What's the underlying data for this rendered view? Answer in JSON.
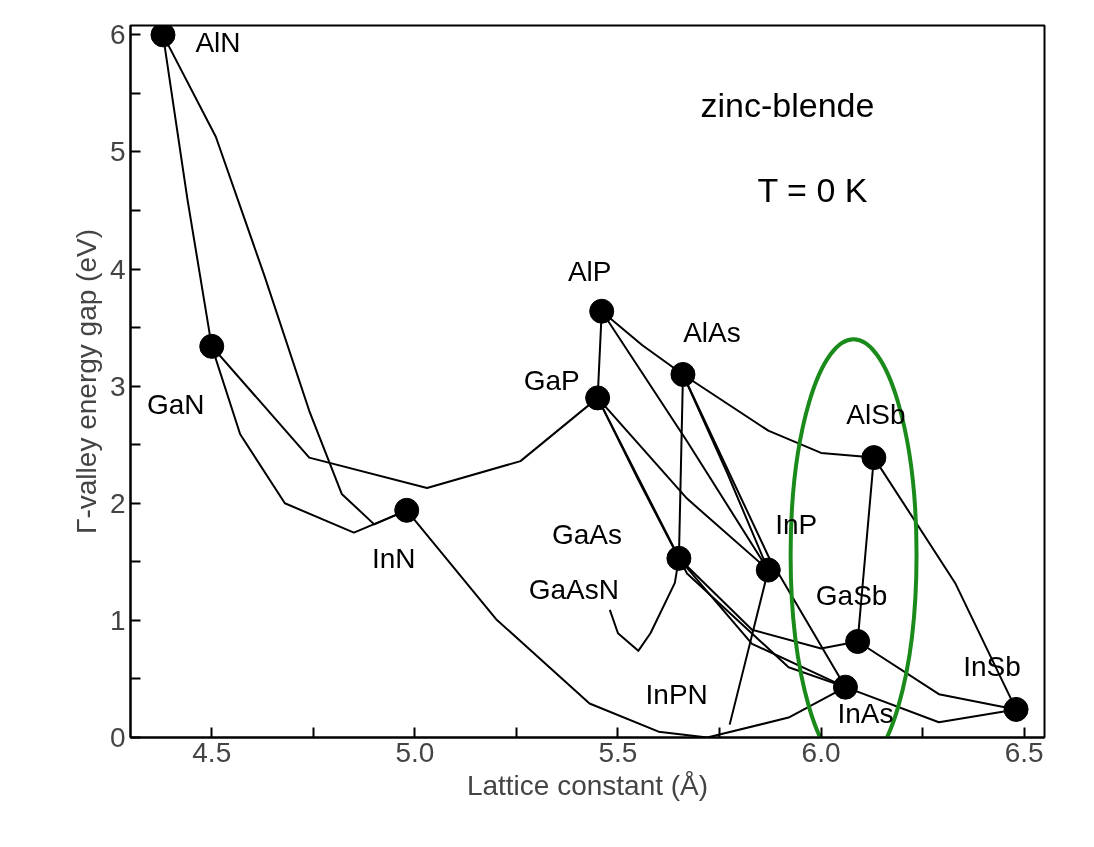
{
  "chart_data": {
    "type": "scatter",
    "xlabel": "Lattice constant (Å)",
    "ylabel": "Γ-valley energy gap (eV)",
    "xlim": [
      4.3,
      6.55
    ],
    "ylim": [
      0,
      6.08
    ],
    "xticks": [
      {
        "value": 4.5,
        "label": "4.5"
      },
      {
        "value": 4.75,
        "label": null
      },
      {
        "value": 5.0,
        "label": "5.0"
      },
      {
        "value": 5.25,
        "label": null
      },
      {
        "value": 5.5,
        "label": "5.5"
      },
      {
        "value": 5.75,
        "label": null
      },
      {
        "value": 6.0,
        "label": "6.0"
      },
      {
        "value": 6.25,
        "label": null
      },
      {
        "value": 6.5,
        "label": "6.5"
      }
    ],
    "yticks": [
      0,
      {
        "value": 0.5,
        "label": null
      },
      1,
      {
        "value": 1.5,
        "label": null
      },
      2,
      {
        "value": 2.5,
        "label": null
      },
      3,
      {
        "value": 3.5,
        "label": null
      },
      4,
      {
        "value": 4.5,
        "label": null
      },
      5,
      {
        "value": 5.5,
        "label": null
      },
      6
    ],
    "grid": false,
    "marker": "none",
    "line_style": "solid",
    "series": [
      {
        "type": "line",
        "color": "#000000",
        "x": [
          4.38,
          4.44,
          4.5
        ],
        "values": [
          6.0,
          4.6,
          3.34
        ]
      },
      {
        "type": "line",
        "color": "#000000",
        "x": [
          4.38,
          4.51,
          4.63,
          4.74,
          4.82,
          4.9,
          4.98
        ],
        "values": [
          6.0,
          5.13,
          3.94,
          2.79,
          2.08,
          1.82,
          1.94
        ]
      },
      {
        "type": "line",
        "color": "#000000",
        "x": [
          4.5,
          4.57,
          4.68,
          4.85,
          4.98
        ],
        "values": [
          3.34,
          2.59,
          2.0,
          1.75,
          1.94
        ]
      },
      {
        "type": "line",
        "color": "#000000",
        "x": [
          4.5,
          4.74,
          5.03,
          5.26,
          5.45
        ],
        "values": [
          3.34,
          2.39,
          2.13,
          2.36,
          2.9
        ]
      },
      {
        "type": "line",
        "color": "#000000",
        "x": [
          4.98,
          5.2,
          5.43,
          5.6,
          5.72,
          5.92,
          6.06
        ],
        "values": [
          1.94,
          1.01,
          0.29,
          0.05,
          0.0,
          0.17,
          0.43
        ]
      },
      {
        "type": "line",
        "color": "#000000",
        "x": [
          5.46,
          5.45
        ],
        "values": [
          3.64,
          2.9
        ]
      },
      {
        "type": "line",
        "color": "#000000",
        "x": [
          5.46,
          5.56,
          5.66
        ],
        "values": [
          3.64,
          3.35,
          3.1
        ]
      },
      {
        "type": "line",
        "color": "#000000",
        "x": [
          5.46,
          5.67,
          5.87
        ],
        "values": [
          3.64,
          2.53,
          1.43
        ]
      },
      {
        "type": "line",
        "color": "#000000",
        "x": [
          5.66,
          5.65
        ],
        "values": [
          3.1,
          1.53
        ]
      },
      {
        "type": "line",
        "color": "#000000",
        "x": [
          5.66,
          5.77,
          5.87
        ],
        "values": [
          3.1,
          2.25,
          1.43
        ]
      },
      {
        "type": "line",
        "color": "#000000",
        "x": [
          5.66,
          5.87,
          6.06
        ],
        "values": [
          3.1,
          1.55,
          0.43
        ]
      },
      {
        "type": "line",
        "color": "#000000",
        "x": [
          5.66,
          5.87,
          6.0,
          6.13
        ],
        "values": [
          3.1,
          2.62,
          2.43,
          2.39
        ]
      },
      {
        "type": "line",
        "color": "#000000",
        "x": [
          5.45,
          5.67,
          5.87
        ],
        "values": [
          2.9,
          2.04,
          1.43
        ]
      },
      {
        "type": "line",
        "color": "#000000",
        "x": [
          5.45,
          5.55,
          5.65
        ],
        "values": [
          2.9,
          2.2,
          1.53
        ]
      },
      {
        "type": "line",
        "color": "#000000",
        "x": [
          5.45,
          5.67,
          5.92,
          6.06
        ],
        "values": [
          2.9,
          1.4,
          0.6,
          0.43
        ]
      },
      {
        "type": "line",
        "color": "#000000",
        "x": [
          5.65,
          5.83,
          6.0,
          6.09
        ],
        "values": [
          1.53,
          0.92,
          0.76,
          0.82
        ]
      },
      {
        "type": "line",
        "color": "#000000",
        "x": [
          5.65,
          5.83,
          6.06
        ],
        "values": [
          1.53,
          0.8,
          0.43
        ]
      },
      {
        "type": "line",
        "color": "#000000",
        "x": [
          6.13,
          6.09
        ],
        "values": [
          2.39,
          0.82
        ]
      },
      {
        "type": "line",
        "color": "#000000",
        "x": [
          6.13,
          6.33,
          6.48
        ],
        "values": [
          2.39,
          1.32,
          0.24
        ]
      },
      {
        "type": "line",
        "color": "#000000",
        "x": [
          6.09,
          6.29,
          6.48
        ],
        "values": [
          0.82,
          0.37,
          0.24
        ]
      },
      {
        "type": "line",
        "color": "#000000",
        "x": [
          6.06,
          6.29,
          6.48
        ],
        "values": [
          0.43,
          0.13,
          0.24
        ]
      },
      {
        "type": "line",
        "color": "#000000",
        "x": [
          5.65,
          5.64,
          5.58,
          5.55,
          5.5,
          5.48
        ],
        "values": [
          1.53,
          1.32,
          0.89,
          0.74,
          0.89,
          1.09
        ]
      },
      {
        "type": "line",
        "color": "#000000",
        "x": [
          5.87,
          5.775
        ],
        "values": [
          1.43,
          0.11
        ]
      },
      {
        "color": "#000000",
        "marker": "circle",
        "x": [
          4.38,
          4.5,
          4.98,
          5.46,
          5.45,
          5.66,
          5.65,
          5.87,
          6.13,
          6.09,
          6.06,
          6.48
        ],
        "values": [
          6.0,
          3.34,
          1.94,
          3.64,
          2.9,
          3.1,
          1.53,
          1.43,
          2.39,
          0.82,
          0.43,
          0.24
        ]
      }
    ],
    "annotations": [
      {
        "text": "AlN",
        "x": 4.38,
        "y": 6.0
      },
      {
        "text": "GaN",
        "x": 4.5,
        "y": 3.34
      },
      {
        "text": "InN",
        "x": 4.98,
        "y": 1.94
      },
      {
        "text": "AlP",
        "x": 5.46,
        "y": 3.64
      },
      {
        "text": "GaP",
        "x": 5.45,
        "y": 2.9
      },
      {
        "text": "AlAs",
        "x": 5.66,
        "y": 3.1
      },
      {
        "text": "GaAs",
        "x": 5.65,
        "y": 1.53
      },
      {
        "text": "GaAsN",
        "x": 5.48,
        "y": 1.09
      },
      {
        "text": "InP",
        "x": 5.87,
        "y": 1.43
      },
      {
        "text": "AlSb",
        "x": 6.13,
        "y": 2.39
      },
      {
        "text": "GaSb",
        "x": 6.09,
        "y": 0.82
      },
      {
        "text": "InPN",
        "x": 5.775,
        "y": 0.11
      },
      {
        "text": "InAs",
        "x": 6.06,
        "y": 0.43
      },
      {
        "text": "InSb",
        "x": 6.48,
        "y": 0.24
      },
      "zinc-blende",
      "T =  0 K"
    ]
  }
}
